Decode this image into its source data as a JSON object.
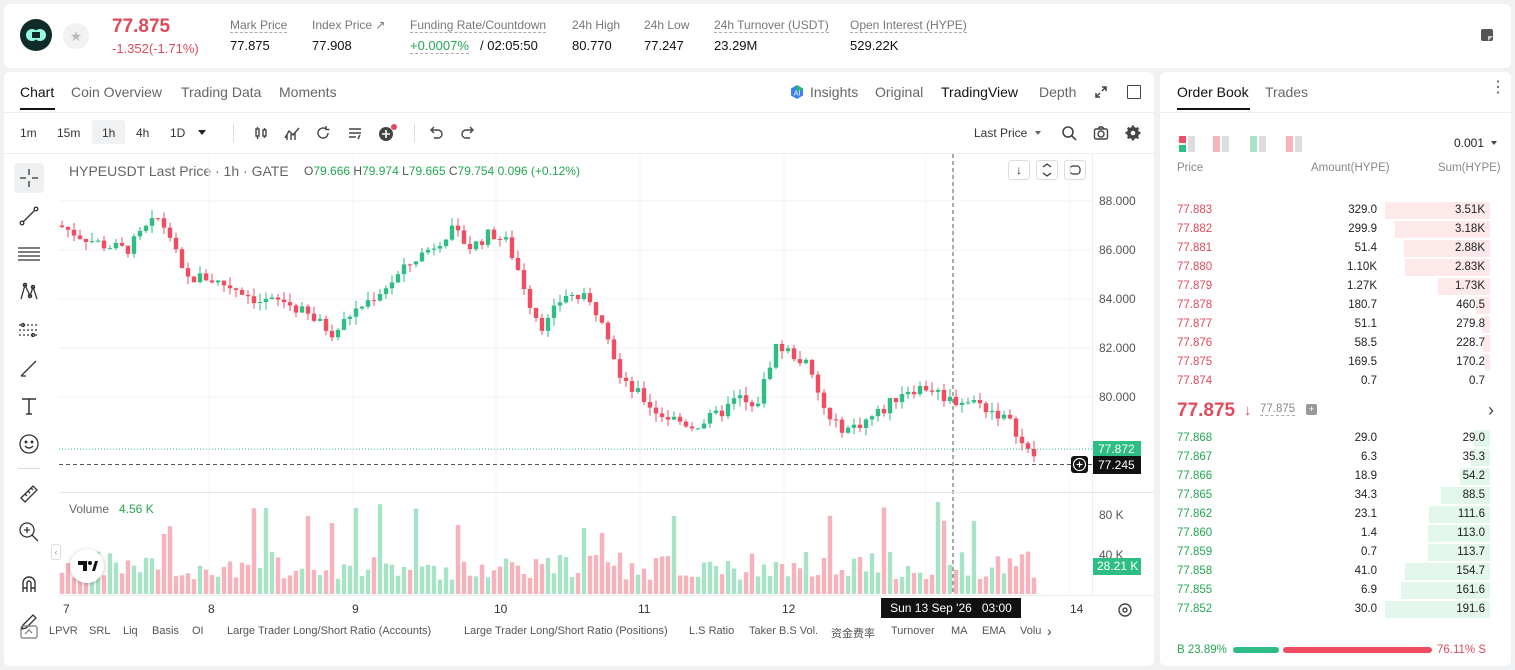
{
  "header": {
    "last_price": "77.875",
    "change": "-1.352(-1.71%)",
    "stats": [
      {
        "label": "Mark Price",
        "value": "77.875"
      },
      {
        "label": "Index Price ↗",
        "value": "77.908"
      },
      {
        "label": "Funding Rate/Countdown",
        "value_a": "+0.0007%",
        "value_b": "/ 02:05:50"
      },
      {
        "label": "24h High",
        "value": "80.770"
      },
      {
        "label": "24h Low",
        "value": "77.247"
      },
      {
        "label": "24h Turnover (USDT)",
        "value": "23.29M"
      },
      {
        "label": "Open Interest (HYPE)",
        "value": "529.22K"
      }
    ]
  },
  "chart_tabs": [
    "Chart",
    "Coin Overview",
    "Trading Data",
    "Moments"
  ],
  "view_tabs": {
    "insights": "Insights",
    "original": "Original",
    "tradingview": "TradingView",
    "depth": "Depth"
  },
  "timeframes": [
    "1m",
    "15m",
    "1h",
    "4h",
    "1D"
  ],
  "price_source": "Last Price",
  "legend": {
    "symbol": "HYPEUSDT Last Price · 1h · GATE",
    "o_label": "O",
    "o": "79.666",
    "h_label": "H",
    "h": "79.974",
    "l_label": "L",
    "l": "79.665",
    "c_label": "C",
    "c": "79.754",
    "chg": "0.096 (+0.12%)"
  },
  "volume_legend": {
    "label": "Volume",
    "value": "4.56 K"
  },
  "price_axis": [
    "88.000",
    "86.000",
    "84.000",
    "82.000",
    "80.000"
  ],
  "price_tags": {
    "last": "77.872",
    "cursor": "77.245"
  },
  "volume_axis": [
    "80 K",
    "40 K"
  ],
  "volume_tag": "28.21 K",
  "x_axis": [
    "7",
    "8",
    "9",
    "10",
    "11",
    "12",
    "14"
  ],
  "crosshair_time": "Sun 13 Sep '26   03:00",
  "indicators": [
    "LPVR",
    "SRL",
    "Liq",
    "Basis",
    "OI",
    "Large Trader Long/Short Ratio (Accounts)",
    "Large Trader Long/Short Ratio (Positions)",
    "L.S Ratio",
    "Taker B.S Vol.",
    "资金费率",
    "Turnover",
    "MA",
    "EMA",
    "Volu"
  ],
  "orderbook": {
    "tabs": [
      "Order Book",
      "Trades"
    ],
    "precision": "0.001",
    "headers": {
      "price": "Price",
      "amount": "Amount(HYPE)",
      "sum": "Sum(HYPE)"
    },
    "asks": [
      {
        "price": "77.883",
        "amount": "329.0",
        "sum": "3.51K",
        "depth": 1.0
      },
      {
        "price": "77.882",
        "amount": "299.9",
        "sum": "3.18K",
        "depth": 0.906
      },
      {
        "price": "77.881",
        "amount": "51.4",
        "sum": "2.88K",
        "depth": 0.82
      },
      {
        "price": "77.880",
        "amount": "1.10K",
        "sum": "2.83K",
        "depth": 0.806
      },
      {
        "price": "77.879",
        "amount": "1.27K",
        "sum": "1.73K",
        "depth": 0.493
      },
      {
        "price": "77.878",
        "amount": "180.7",
        "sum": "460.5",
        "depth": 0.131
      },
      {
        "price": "77.877",
        "amount": "51.1",
        "sum": "279.8",
        "depth": 0.08
      },
      {
        "price": "77.876",
        "amount": "58.5",
        "sum": "228.7",
        "depth": 0.065
      },
      {
        "price": "77.875",
        "amount": "169.5",
        "sum": "170.2",
        "depth": 0.048
      },
      {
        "price": "77.874",
        "amount": "0.7",
        "sum": "0.7",
        "depth": 0.0
      }
    ],
    "mid_price": "77.875",
    "mid_mark": "77.875",
    "bids": [
      {
        "price": "77.868",
        "amount": "29.0",
        "sum": "29.0",
        "depth": 0.151
      },
      {
        "price": "77.867",
        "amount": "6.3",
        "sum": "35.3",
        "depth": 0.184
      },
      {
        "price": "77.866",
        "amount": "18.9",
        "sum": "54.2",
        "depth": 0.283
      },
      {
        "price": "77.865",
        "amount": "34.3",
        "sum": "88.5",
        "depth": 0.462
      },
      {
        "price": "77.862",
        "amount": "23.1",
        "sum": "111.6",
        "depth": 0.582
      },
      {
        "price": "77.860",
        "amount": "1.4",
        "sum": "113.0",
        "depth": 0.59
      },
      {
        "price": "77.859",
        "amount": "0.7",
        "sum": "113.7",
        "depth": 0.593
      },
      {
        "price": "77.858",
        "amount": "41.0",
        "sum": "154.7",
        "depth": 0.807
      },
      {
        "price": "77.855",
        "amount": "6.9",
        "sum": "161.6",
        "depth": 0.843
      },
      {
        "price": "77.852",
        "amount": "30.0",
        "sum": "191.6",
        "depth": 1.0
      }
    ],
    "buy_ratio": "B 23.89%",
    "sell_ratio": "76.11% S",
    "buy_fraction": 0.2389
  },
  "colors": {
    "up": "#2ebd85",
    "down": "#f04d63",
    "accent": "#111111"
  }
}
